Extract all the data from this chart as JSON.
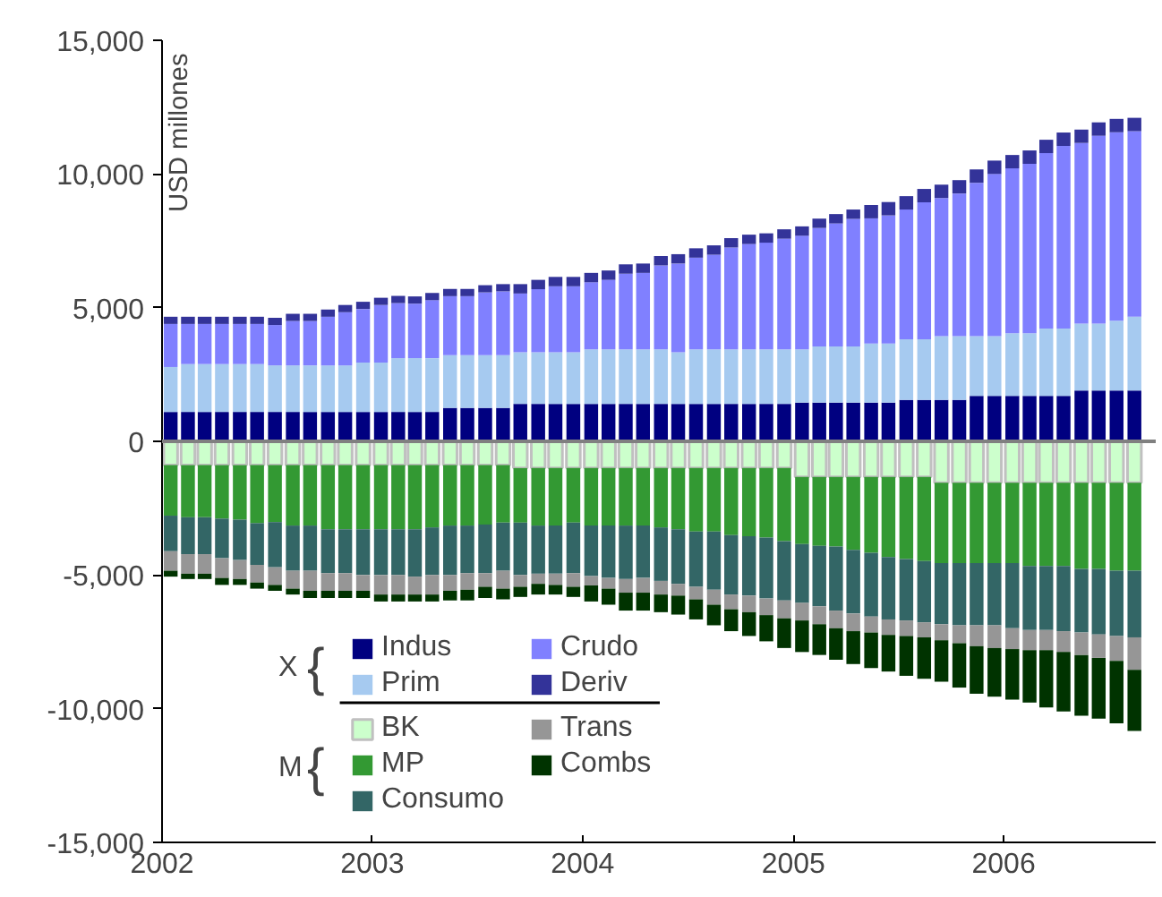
{
  "chart_data": {
    "type": "bar",
    "stacked": true,
    "ylabel": "USD millones",
    "x": [
      "2002-01-16",
      "2002-02-15",
      "2002-03-16",
      "2002-04-15",
      "2002-05-16",
      "2002-06-15",
      "2002-07-16",
      "2002-08-16",
      "2002-09-15",
      "2002-10-16",
      "2002-11-15",
      "2002-12-16",
      "2003-01-16",
      "2003-02-15",
      "2003-03-16",
      "2003-04-15",
      "2003-05-16",
      "2003-06-15",
      "2003-07-16",
      "2003-08-16",
      "2003-09-15",
      "2003-10-16",
      "2003-11-15",
      "2003-12-16",
      "2004-01-16",
      "2004-02-15",
      "2004-03-16",
      "2004-04-15",
      "2004-05-16",
      "2004-06-15",
      "2004-07-16",
      "2004-08-16",
      "2004-09-15",
      "2004-10-16",
      "2004-11-15",
      "2004-12-16",
      "2005-01-16",
      "2005-02-15",
      "2005-03-16",
      "2005-04-15",
      "2005-05-16",
      "2005-06-15",
      "2005-07-16",
      "2005-08-16",
      "2005-09-15",
      "2005-10-16",
      "2005-11-15",
      "2005-12-16",
      "2006-01-16",
      "2006-02-15",
      "2006-03-16",
      "2006-04-15",
      "2006-05-16",
      "2006-06-15",
      "2006-07-16",
      "2006-08-16"
    ],
    "series": [
      {
        "name": "Indus",
        "color": "#000080",
        "values": [
          1100,
          1100,
          1100,
          1100,
          1100,
          1100,
          1100,
          1100,
          1100,
          1100,
          1100,
          1100,
          1100,
          1100,
          1100,
          1100,
          1250,
          1250,
          1250,
          1250,
          1400,
          1400,
          1400,
          1400,
          1400,
          1400,
          1400,
          1400,
          1400,
          1400,
          1400,
          1400,
          1400,
          1400,
          1400,
          1400,
          1450,
          1450,
          1450,
          1450,
          1450,
          1450,
          1550,
          1550,
          1550,
          1550,
          1700,
          1700,
          1700,
          1700,
          1700,
          1700,
          1900,
          1900,
          1900,
          1900
        ]
      },
      {
        "name": "Prim",
        "color": "#a6caf0",
        "values": [
          1680,
          1790,
          1790,
          1790,
          1790,
          1790,
          1740,
          1740,
          1740,
          1740,
          1740,
          1850,
          1850,
          2010,
          2010,
          2010,
          1970,
          1970,
          1970,
          1970,
          1930,
          1930,
          1930,
          1930,
          2040,
          2040,
          2040,
          2040,
          2040,
          1930,
          2040,
          2040,
          2040,
          2040,
          2040,
          2040,
          1990,
          2100,
          2100,
          2100,
          2210,
          2210,
          2270,
          2270,
          2380,
          2380,
          2230,
          2230,
          2340,
          2340,
          2520,
          2520,
          2500,
          2500,
          2610,
          2760
        ]
      },
      {
        "name": "Crudo",
        "color": "#8080ff",
        "values": [
          1610,
          1500,
          1500,
          1500,
          1500,
          1500,
          1510,
          1660,
          1660,
          1820,
          1990,
          2000,
          2150,
          2060,
          2040,
          2170,
          2210,
          2210,
          2350,
          2390,
          2200,
          2360,
          2470,
          2470,
          2510,
          2600,
          2830,
          2860,
          3140,
          3320,
          3430,
          3540,
          3810,
          3940,
          3990,
          4140,
          4250,
          4430,
          4600,
          4770,
          4680,
          4790,
          4850,
          5120,
          5170,
          5340,
          5740,
          6070,
          6170,
          6340,
          6560,
          6830,
          6760,
          7030,
          7050,
          6940
        ]
      },
      {
        "name": "Deriv",
        "color": "#333399",
        "values": [
          270,
          270,
          270,
          270,
          270,
          270,
          270,
          270,
          270,
          270,
          270,
          270,
          270,
          270,
          270,
          270,
          270,
          270,
          270,
          270,
          350,
          350,
          350,
          350,
          350,
          350,
          350,
          350,
          350,
          350,
          350,
          350,
          350,
          350,
          350,
          350,
          350,
          350,
          350,
          350,
          500,
          500,
          500,
          500,
          500,
          500,
          500,
          500,
          500,
          500,
          500,
          500,
          500,
          500,
          500,
          500
        ]
      },
      {
        "name": "BK",
        "color": "#ccffcc",
        "values": [
          -890,
          -890,
          -890,
          -890,
          -890,
          -890,
          -890,
          -890,
          -890,
          -890,
          -890,
          -890,
          -890,
          -890,
          -890,
          -890,
          -890,
          -890,
          -890,
          -890,
          -1000,
          -1000,
          -1000,
          -1000,
          -1000,
          -1000,
          -1000,
          -1000,
          -1000,
          -1000,
          -1000,
          -1000,
          -1000,
          -1000,
          -1000,
          -1000,
          -1330,
          -1330,
          -1330,
          -1330,
          -1330,
          -1330,
          -1330,
          -1330,
          -1550,
          -1550,
          -1550,
          -1550,
          -1550,
          -1550,
          -1550,
          -1550,
          -1550,
          -1550,
          -1550,
          -1550
        ]
      },
      {
        "name": "MP",
        "color": "#339933",
        "values": [
          -1890,
          -1950,
          -1950,
          -2000,
          -2040,
          -2170,
          -2130,
          -2260,
          -2260,
          -2400,
          -2400,
          -2400,
          -2400,
          -2400,
          -2400,
          -2330,
          -2260,
          -2260,
          -2220,
          -2150,
          -2040,
          -2150,
          -2150,
          -2040,
          -2150,
          -2150,
          -2150,
          -2150,
          -2220,
          -2290,
          -2370,
          -2370,
          -2510,
          -2550,
          -2600,
          -2730,
          -2510,
          -2580,
          -2600,
          -2730,
          -2840,
          -3000,
          -3070,
          -3150,
          -3000,
          -3000,
          -3000,
          -3000,
          -3000,
          -3110,
          -3110,
          -3110,
          -3220,
          -3220,
          -3290,
          -3290
        ]
      },
      {
        "name": "Consumo",
        "color": "#336666",
        "values": [
          -1330,
          -1380,
          -1380,
          -1480,
          -1510,
          -1560,
          -1690,
          -1690,
          -1690,
          -1640,
          -1640,
          -1710,
          -1710,
          -1710,
          -1770,
          -1780,
          -1850,
          -1780,
          -1820,
          -1800,
          -1960,
          -1800,
          -1800,
          -1890,
          -1890,
          -1960,
          -2000,
          -1960,
          -2000,
          -2040,
          -2070,
          -2180,
          -2220,
          -2220,
          -2280,
          -2220,
          -2200,
          -2260,
          -2400,
          -2380,
          -2380,
          -2330,
          -2300,
          -2290,
          -2290,
          -2330,
          -2330,
          -2330,
          -2440,
          -2400,
          -2400,
          -2440,
          -2380,
          -2450,
          -2440,
          -2490
        ]
      },
      {
        "name": "Trans",
        "color": "#969696",
        "values": [
          -730,
          -730,
          -730,
          -740,
          -710,
          -660,
          -660,
          -670,
          -750,
          -660,
          -660,
          -590,
          -730,
          -730,
          -670,
          -730,
          -590,
          -620,
          -510,
          -670,
          -440,
          -380,
          -420,
          -510,
          -350,
          -400,
          -510,
          -550,
          -510,
          -440,
          -470,
          -560,
          -550,
          -620,
          -620,
          -670,
          -660,
          -670,
          -660,
          -660,
          -600,
          -580,
          -580,
          -560,
          -600,
          -670,
          -780,
          -850,
          -780,
          -750,
          -750,
          -780,
          -840,
          -880,
          -930,
          -1220
        ]
      },
      {
        "name": "Combs",
        "color": "#003300",
        "values": [
          -220,
          -200,
          -200,
          -260,
          -220,
          -230,
          -220,
          -220,
          -270,
          -270,
          -270,
          -270,
          -260,
          -260,
          -260,
          -260,
          -360,
          -400,
          -420,
          -400,
          -380,
          -400,
          -360,
          -380,
          -600,
          -600,
          -670,
          -670,
          -660,
          -710,
          -750,
          -770,
          -820,
          -890,
          -980,
          -1110,
          -1180,
          -1150,
          -1180,
          -1230,
          -1330,
          -1370,
          -1490,
          -1550,
          -1550,
          -1660,
          -1780,
          -1820,
          -1890,
          -1960,
          -2140,
          -2220,
          -2270,
          -2270,
          -2340,
          -2280
        ]
      }
    ],
    "xlim": [
      "2002-01-01",
      "2006-09-22"
    ],
    "xticks": [
      {
        "value": "2002-01-01",
        "label": "2002"
      },
      {
        "value": "2003-01-01",
        "label": "2003"
      },
      {
        "value": "2004-01-01",
        "label": "2004"
      },
      {
        "value": "2005-01-01",
        "label": "2005"
      },
      {
        "value": "2006-01-01",
        "label": "2006"
      }
    ],
    "ylim": [
      -15000,
      15000
    ],
    "yticks": [
      {
        "value": -15000,
        "label": "-15,000"
      },
      {
        "value": -10000,
        "label": "-10,000"
      },
      {
        "value": -5000,
        "label": "-5,000"
      },
      {
        "value": 0,
        "label": "0"
      },
      {
        "value": 5000,
        "label": "5,000"
      },
      {
        "value": 10000,
        "label": "10,000"
      },
      {
        "value": 15000,
        "label": "15,000"
      }
    ],
    "ref_lines": [
      {
        "axis": "y",
        "value": 0,
        "color": "#808080"
      }
    ],
    "annotations": [
      "X",
      "{",
      "M",
      "{"
    ],
    "legend": "bottom left",
    "grid": false
  }
}
